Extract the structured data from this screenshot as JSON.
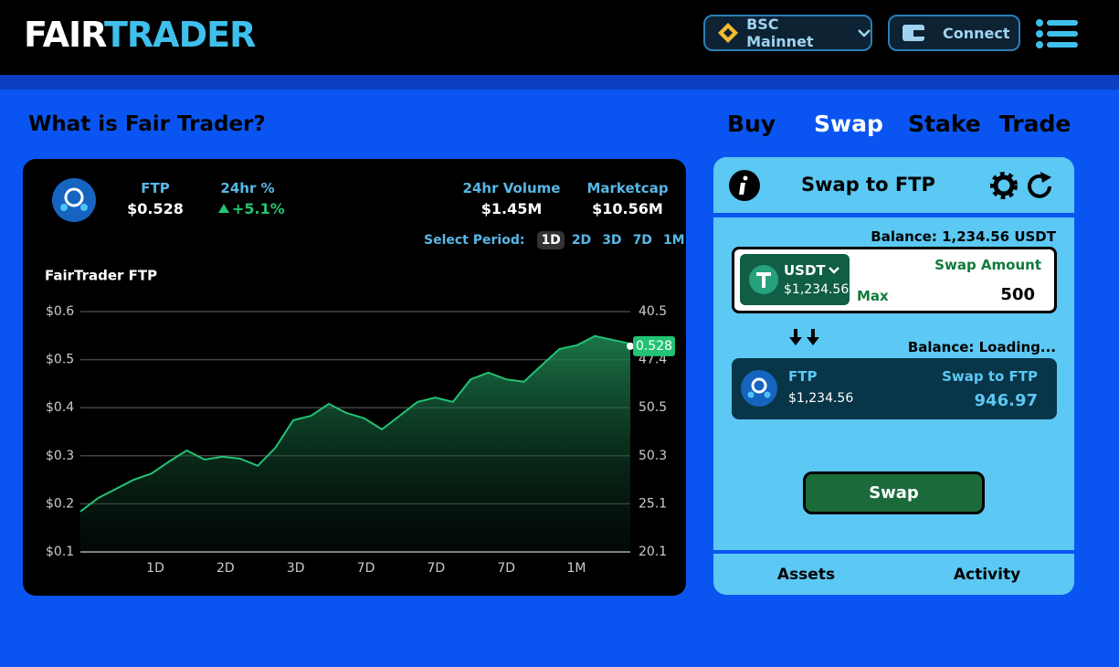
{
  "header": {
    "logo_left": "FAIR",
    "logo_right": "TRADER",
    "network": "BSC Mainnet",
    "connect": "Connect"
  },
  "page": {
    "heading": "What is Fair Trader?",
    "tabs": [
      "Buy",
      "Swap",
      "Stake",
      "Trade"
    ]
  },
  "stats": {
    "token": "FTP",
    "price": "$0.528",
    "change_label": "24hr %",
    "change": "+5.1%",
    "volume_label": "24hr Volume",
    "volume": "$1.45M",
    "marketcap_label": "Marketcap",
    "marketcap": "$10.56M",
    "period_label": "Select Period:",
    "periods": [
      "1D",
      "2D",
      "3D",
      "7D",
      "1M"
    ]
  },
  "chart_data": {
    "type": "line",
    "title": "FairTrader FTP",
    "values": [
      0.184,
      0.212,
      0.231,
      0.25,
      0.263,
      0.288,
      0.311,
      0.292,
      0.298,
      0.294,
      0.279,
      0.317,
      0.374,
      0.383,
      0.408,
      0.389,
      0.378,
      0.355,
      0.383,
      0.412,
      0.421,
      0.412,
      0.459,
      0.473,
      0.459,
      0.454,
      0.488,
      0.522,
      0.53,
      0.549,
      0.541,
      0.533
    ],
    "color": "#22c373",
    "ylim": [
      0.1,
      0.6
    ],
    "yticks": [
      {
        "value": 0.6,
        "label": "$0.6"
      },
      {
        "value": 0.5,
        "label": "$0.5"
      },
      {
        "value": 0.4,
        "label": "$0.4"
      },
      {
        "value": 0.3,
        "label": "$0.3"
      },
      {
        "value": 0.2,
        "label": "$0.2"
      },
      {
        "value": 0.1,
        "label": "$0.1"
      }
    ],
    "right_labels": [
      "40.5",
      "47.4",
      "50.5",
      "50.3",
      "25.1",
      "20.1"
    ],
    "x_labels": [
      "1D",
      "2D",
      "3D",
      "7D",
      "7D",
      "7D",
      "1M"
    ],
    "current_price": 0.528,
    "grid": true
  },
  "swap": {
    "title": "Swap to FTP",
    "balance_from": "Balance: 1,234.56 USDT",
    "from_token": "USDT",
    "from_value": "$1,234.56",
    "amount_label": "Swap Amount",
    "max": "Max",
    "amount": "500",
    "balance_to": "Balance: Loading...",
    "to_token": "FTP",
    "to_value": "$1,234.56",
    "to_label": "Swap to FTP",
    "to_amount": "946.97",
    "button": "Swap",
    "footer_tabs": [
      "Assets",
      "Activity"
    ]
  }
}
